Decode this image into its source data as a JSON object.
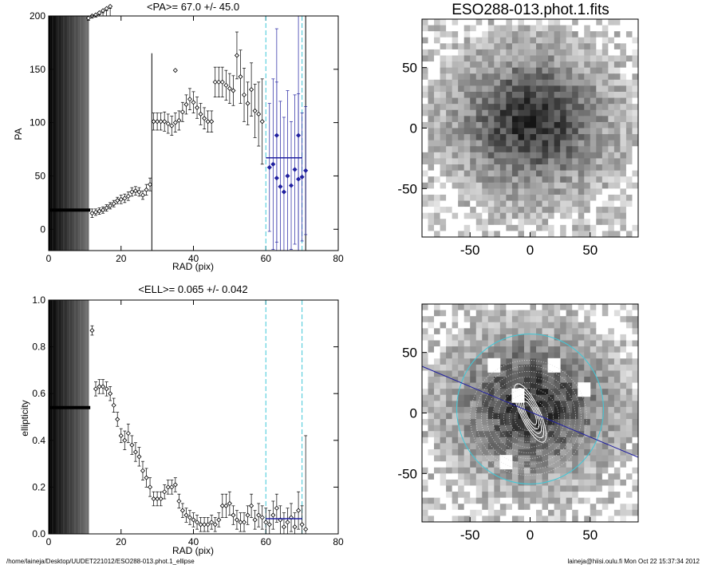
{
  "title": "ESO288-013.phot.1.fits",
  "footer": {
    "path": "/home/laineja/Desktop/UUDET221012/ESO288-013.phot.1_ellipse",
    "user": "laineja@hiisi.oulu.fi  Mon Oct 22 15:37:34 2012"
  },
  "colors": {
    "ink": "#000000",
    "blue": "#2020a0",
    "cyan": "#40c8d8"
  },
  "chart_data": [
    {
      "type": "scatter",
      "title": "<PA>=  67.0 +/-  45.0",
      "xlabel": "RAD (pix)",
      "ylabel": "PA",
      "xlim": [
        0,
        80
      ],
      "ylim": [
        -20,
        200
      ],
      "xticks": [
        "0",
        "20",
        "40",
        "60",
        "80"
      ],
      "yticks": [
        "0",
        "50",
        "100",
        "150",
        "200"
      ],
      "mean_line": {
        "x": [
          60,
          70
        ],
        "y": 67
      },
      "markers_x": [
        60,
        70,
        71
      ],
      "series": [
        {
          "marker": "diamond",
          "color": "black",
          "points": [
            [
              12,
              15,
              4
            ],
            [
              13,
              16,
              3
            ],
            [
              14,
              17,
              3
            ],
            [
              15,
              18,
              3
            ],
            [
              16,
              20,
              3
            ],
            [
              17,
              22,
              3
            ],
            [
              18,
              24,
              3
            ],
            [
              19,
              27,
              3
            ],
            [
              20,
              28,
              4
            ],
            [
              21,
              29,
              4
            ],
            [
              22,
              31,
              4
            ],
            [
              23,
              35,
              4
            ],
            [
              24,
              36,
              4
            ],
            [
              25,
              35,
              4
            ],
            [
              26,
              32,
              4
            ],
            [
              27,
              37,
              5
            ],
            [
              28,
              42,
              6
            ],
            [
              29,
              101,
              8
            ],
            [
              30,
              101,
              8
            ],
            [
              31,
              101,
              8
            ],
            [
              32,
              101,
              9
            ],
            [
              33,
              99,
              9
            ],
            [
              34,
              97,
              9
            ],
            [
              35,
              100,
              9
            ],
            [
              36,
              102,
              9
            ],
            [
              37,
              110,
              9
            ],
            [
              38,
              117,
              9
            ],
            [
              39,
              122,
              10
            ],
            [
              40,
              119,
              10
            ],
            [
              41,
              114,
              10
            ],
            [
              42,
              108,
              10
            ],
            [
              43,
              104,
              10
            ],
            [
              44,
              101,
              10
            ],
            [
              45,
              101,
              10
            ],
            [
              35,
              149,
              0
            ],
            [
              46,
              138,
              14
            ],
            [
              47,
              138,
              14
            ],
            [
              48,
              138,
              14
            ],
            [
              49,
              135,
              14
            ],
            [
              50,
              132,
              14
            ],
            [
              51,
              130,
              14
            ],
            [
              52,
              163,
              22
            ],
            [
              53,
              143,
              25
            ],
            [
              54,
              126,
              25
            ],
            [
              55,
              118,
              20
            ],
            [
              56,
              131,
              25
            ],
            [
              57,
              111,
              25
            ],
            [
              58,
              108,
              30
            ],
            [
              59,
              101,
              40
            ],
            [
              11,
              198,
              2
            ],
            [
              12,
              200,
              2
            ],
            [
              13,
              201,
              2
            ],
            [
              14,
              203,
              2
            ],
            [
              15,
              205,
              2
            ],
            [
              16,
              207,
              2
            ],
            [
              17,
              209,
              2
            ]
          ]
        },
        {
          "marker": "diamond",
          "color": "blue",
          "points": [
            [
              61,
              58,
              60
            ],
            [
              62,
              61,
              80
            ],
            [
              63,
              48,
              90
            ],
            [
              64,
              40,
              80
            ],
            [
              65,
              35,
              70
            ],
            [
              66,
              50,
              80
            ],
            [
              67,
              41,
              60
            ],
            [
              69,
              47,
              80
            ],
            [
              70,
              49,
              60
            ],
            [
              71,
              55,
              60
            ],
            [
              68,
              56,
              70
            ],
            [
              63,
              88,
              100
            ],
            [
              69,
              88,
              120
            ]
          ]
        }
      ]
    },
    {
      "type": "scatter",
      "title": "<ELL>= 0.065 +/-  0.042",
      "xlabel": "RAD (pix)",
      "ylabel": "ellipticity",
      "xlim": [
        0,
        80
      ],
      "ylim": [
        0.0,
        1.0
      ],
      "xticks": [
        "0",
        "20",
        "40",
        "60",
        "80"
      ],
      "yticks": [
        "0.0",
        "0.2",
        "0.4",
        "0.6",
        "0.8",
        "1.0"
      ],
      "mean_line": {
        "x": [
          60,
          70
        ],
        "y": 0.065
      },
      "markers_x": [
        60,
        70
      ],
      "series": [
        {
          "marker": "diamond",
          "color": "black",
          "points": [
            [
              12,
              0.87,
              0.02
            ],
            [
              13,
              0.62,
              0.03
            ],
            [
              14,
              0.63,
              0.03
            ],
            [
              15,
              0.63,
              0.03
            ],
            [
              16,
              0.62,
              0.03
            ],
            [
              17,
              0.6,
              0.03
            ],
            [
              18,
              0.55,
              0.03
            ],
            [
              19,
              0.49,
              0.03
            ],
            [
              20,
              0.42,
              0.03
            ],
            [
              21,
              0.4,
              0.04
            ],
            [
              22,
              0.43,
              0.04
            ],
            [
              23,
              0.38,
              0.04
            ],
            [
              24,
              0.35,
              0.04
            ],
            [
              25,
              0.33,
              0.04
            ],
            [
              26,
              0.27,
              0.04
            ],
            [
              27,
              0.24,
              0.04
            ],
            [
              28,
              0.2,
              0.04
            ],
            [
              29,
              0.15,
              0.03
            ],
            [
              30,
              0.15,
              0.03
            ],
            [
              31,
              0.15,
              0.03
            ],
            [
              32,
              0.18,
              0.03
            ],
            [
              33,
              0.2,
              0.03
            ],
            [
              34,
              0.2,
              0.03
            ],
            [
              35,
              0.21,
              0.03
            ],
            [
              36,
              0.14,
              0.03
            ],
            [
              37,
              0.1,
              0.03
            ],
            [
              38,
              0.08,
              0.03
            ],
            [
              39,
              0.07,
              0.03
            ],
            [
              40,
              0.06,
              0.03
            ],
            [
              41,
              0.05,
              0.03
            ],
            [
              42,
              0.04,
              0.03
            ],
            [
              43,
              0.04,
              0.03
            ],
            [
              44,
              0.04,
              0.03
            ],
            [
              45,
              0.05,
              0.03
            ],
            [
              46,
              0.04,
              0.03
            ],
            [
              47,
              0.06,
              0.03
            ],
            [
              48,
              0.12,
              0.05
            ],
            [
              49,
              0.12,
              0.05
            ],
            [
              50,
              0.13,
              0.05
            ],
            [
              51,
              0.08,
              0.04
            ],
            [
              52,
              0.06,
              0.04
            ],
            [
              53,
              0.05,
              0.04
            ],
            [
              54,
              0.05,
              0.04
            ],
            [
              55,
              0.08,
              0.04
            ],
            [
              56,
              0.12,
              0.05
            ],
            [
              57,
              0.06,
              0.04
            ],
            [
              58,
              0.08,
              0.05
            ],
            [
              59,
              0.07,
              0.05
            ],
            [
              60,
              0.05,
              0.06
            ],
            [
              61,
              0.04,
              0.06
            ],
            [
              62,
              0.08,
              0.06
            ],
            [
              63,
              0.11,
              0.06
            ],
            [
              64,
              0.06,
              0.06
            ],
            [
              65,
              0.03,
              0.06
            ],
            [
              66,
              0.05,
              0.06
            ],
            [
              67,
              0.07,
              0.06
            ],
            [
              68,
              0.03,
              0.06
            ],
            [
              69,
              0.1,
              0.08
            ],
            [
              70,
              0.04,
              0.08
            ],
            [
              71,
              0.02,
              0.4
            ]
          ]
        }
      ]
    },
    {
      "type": "heatmap",
      "panel": "image",
      "xlim": [
        -90,
        90
      ],
      "ylim": [
        -90,
        90
      ],
      "xticks": [
        "-50",
        "0",
        "50"
      ],
      "yticks": [
        "50",
        "0",
        "-50"
      ]
    },
    {
      "type": "heatmap",
      "panel": "contours",
      "xlim": [
        -90,
        90
      ],
      "ylim": [
        -90,
        90
      ],
      "xticks": [
        "-50",
        "0",
        "50"
      ],
      "yticks": [
        "50",
        "0",
        "-50"
      ]
    }
  ]
}
